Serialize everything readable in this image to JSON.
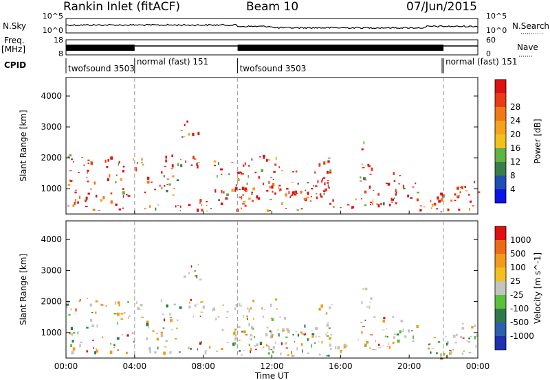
{
  "header": {
    "radar": "Rankin Inlet (fitACF)",
    "beam": "Beam 10",
    "date": "07/Jun/2015"
  },
  "top_panels": {
    "noise": {
      "left_label": "N.Sky",
      "right_label": "N.Search",
      "left_ticks": [
        "10^5",
        "10^0"
      ],
      "right_ticks": [
        "10^5",
        "10^0"
      ]
    },
    "freq": {
      "left_label_line1": "Freq.",
      "left_label_line2": "[MHz]",
      "right_label": "Nave",
      "left_ticks": [
        "18",
        "8"
      ],
      "right_ticks": [
        "60",
        "0"
      ]
    },
    "cpid": {
      "label": "CPID",
      "segments": [
        {
          "start_hour": 0.0,
          "end_hour": 4.0,
          "name": "twofsound 3503"
        },
        {
          "start_hour": 4.0,
          "end_hour": 10.0,
          "name": "normal (fast) 151"
        },
        {
          "start_hour": 10.0,
          "end_hour": 22.0,
          "name": "twofsound 3503"
        },
        {
          "start_hour": 22.0,
          "end_hour": 24.0,
          "name": "normal (fast) 151"
        }
      ]
    }
  },
  "chart_data": [
    {
      "type": "heatmap",
      "ylabel": "Slant Range [km]",
      "xlabel": "Time UT",
      "xlim": [
        0,
        24
      ],
      "ylim": [
        180,
        4600
      ],
      "x_ticks": [
        "00:00",
        "04:00",
        "08:00",
        "12:00",
        "16:00",
        "20:00",
        "00:00"
      ],
      "y_ticks": [
        1000,
        2000,
        3000,
        4000
      ],
      "colorbar": {
        "label": "Power [dB]",
        "ticks": [
          "4",
          "8",
          "12",
          "16",
          "20",
          "24",
          "28"
        ],
        "colors": [
          "#0a14e6",
          "#1f4fb5",
          "#3a7d4a",
          "#5fb244",
          "#f2c11c",
          "#f5a31a",
          "#f07a17",
          "#ea3b14",
          "#e01010"
        ]
      },
      "dominant_palette": [
        "#e01010",
        "#ea3b14",
        "#f07a17",
        "#f5a31a",
        "#3a7d4a",
        "#5fb244"
      ]
    },
    {
      "type": "heatmap",
      "ylabel": "Slant Range [km]",
      "xlabel": "Time UT",
      "xlim": [
        0,
        24
      ],
      "ylim": [
        180,
        4600
      ],
      "x_ticks": [
        "00:00",
        "04:00",
        "08:00",
        "12:00",
        "16:00",
        "20:00",
        "00:00"
      ],
      "y_ticks": [
        1000,
        2000,
        3000,
        4000
      ],
      "colorbar": {
        "label": "Velocity [m s^-1]",
        "ticks": [
          "1000",
          "500",
          "100",
          "25",
          "-25",
          "-100",
          "-500",
          "-1000"
        ],
        "colors": [
          "#1e2fb0",
          "#2d5fb0",
          "#2f7a4a",
          "#5cbf3c",
          "#c3c3bf",
          "#f5c01e",
          "#f39a1a",
          "#ef6a16",
          "#e01010"
        ]
      },
      "dominant_palette": [
        "#c3c3bf",
        "#f39a1a",
        "#5cbf3c",
        "#2f7a4a",
        "#e01010"
      ]
    }
  ],
  "vertical_markers_hours": [
    4,
    10,
    22
  ]
}
